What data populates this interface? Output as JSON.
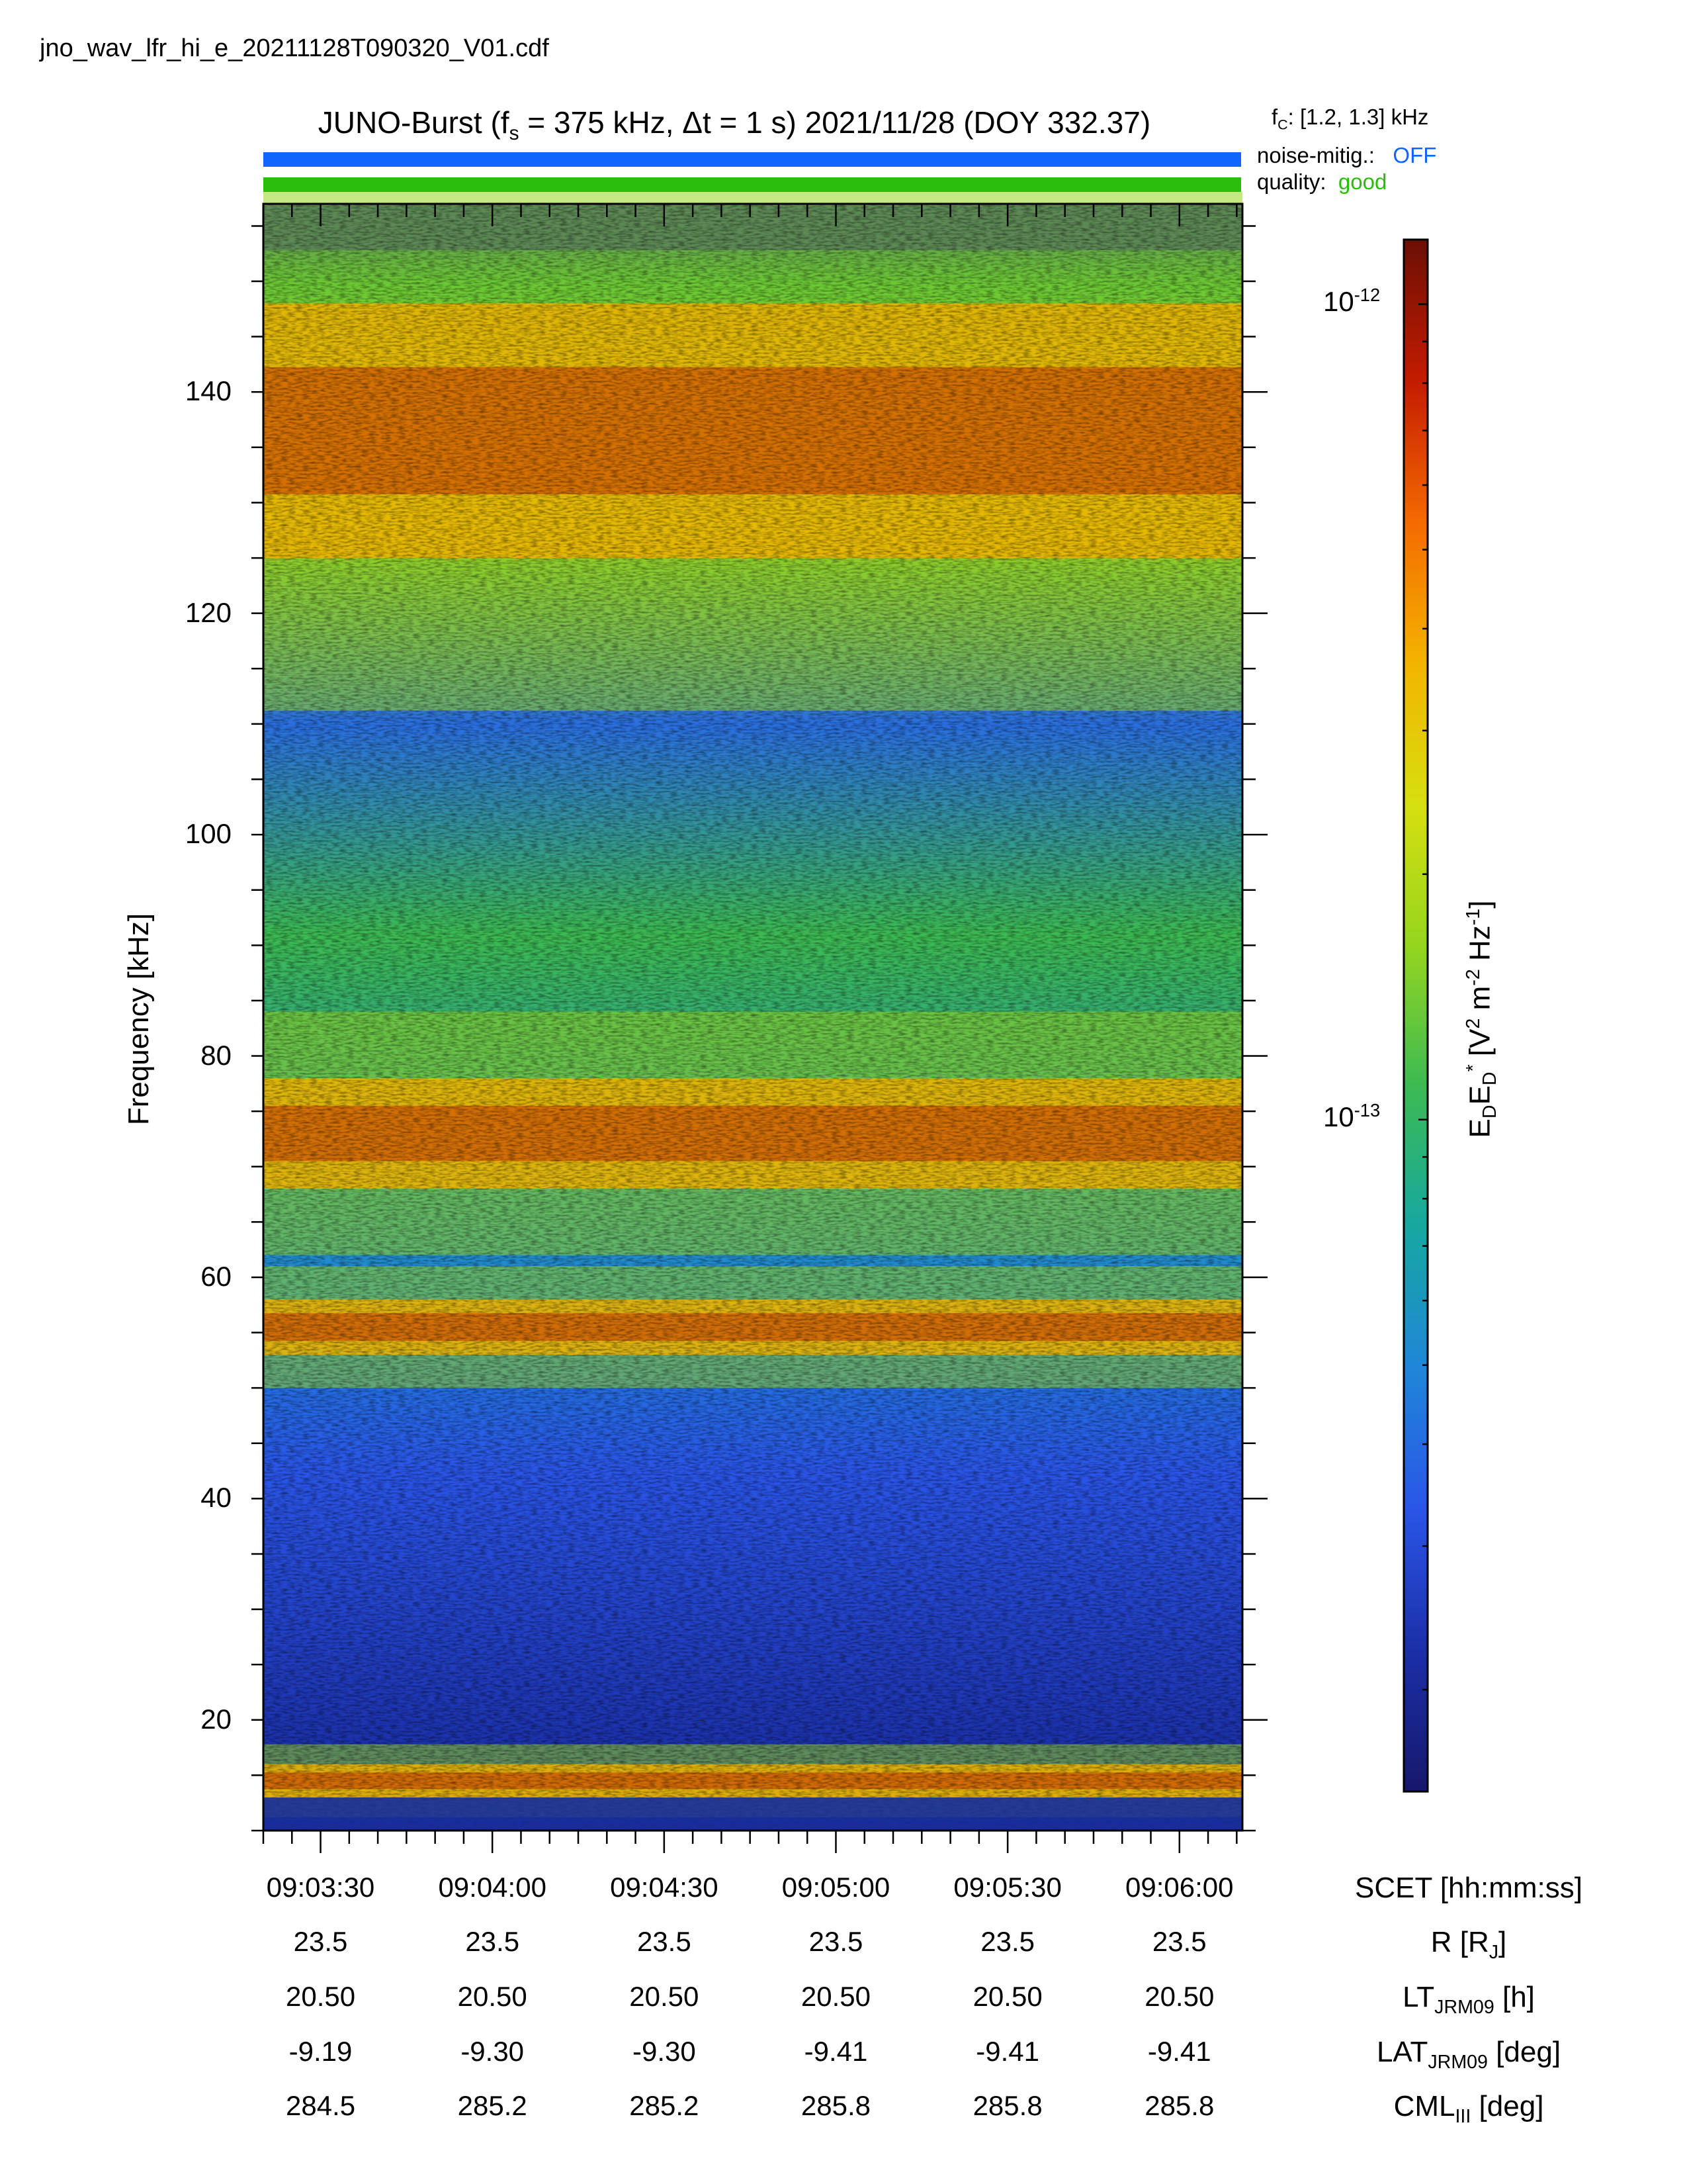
{
  "file_name": "jno_wav_lfr_hi_e_20211128T090320_V01.cdf",
  "title": {
    "text_a": "JUNO-Burst (f",
    "sub_s": "s",
    "text_b": " = 375 kHz, Δt = 1 s)  2021/11/28 (DOY 332.37)"
  },
  "fc_label": {
    "f": "f",
    "sub": "C",
    "rest": ": [1.2, 1.3] kHz"
  },
  "noise_mitig": {
    "label": "noise-mitig.:",
    "value": "OFF",
    "color": "#1165ff"
  },
  "quality": {
    "label": "quality:",
    "value": "good",
    "color": "#2bbd0c"
  },
  "colorbar": {
    "label_html": "E<sub>D</sub>E<sub>D</sub><sup>*</sup> [V<sup>2</sup> m<sup>-2</sup> Hz<sup>-1</sup>]",
    "ticks": [
      {
        "base": "10",
        "exp": "-12"
      },
      {
        "base": "10",
        "exp": "-13"
      }
    ],
    "colormap": [
      "#17186b",
      "#1b2fa8",
      "#2a55e8",
      "#1f86d8",
      "#16a8a0",
      "#3cba52",
      "#95d51e",
      "#d6df0f",
      "#f3b400",
      "#f56a00",
      "#c41b00",
      "#6b0f06"
    ]
  },
  "axes": {
    "ylabel": "Frequency [kHz]",
    "yticks": [
      "140",
      "120",
      "100",
      "80",
      "60",
      "40",
      "20"
    ],
    "xticks": [
      "09:03:30",
      "09:04:00",
      "09:04:30",
      "09:05:00",
      "09:05:30",
      "09:06:00"
    ]
  },
  "ephemeris": {
    "rows": [
      {
        "label_html": "SCET [hh:mm:ss]",
        "values": []
      },
      {
        "label_html": "R [R<sub>J</sub>]",
        "values": [
          "23.5",
          "23.5",
          "23.5",
          "23.5",
          "23.5",
          "23.5"
        ]
      },
      {
        "label_html": "LT<sub>JRM09</sub> [h]",
        "values": [
          "20.50",
          "20.50",
          "20.50",
          "20.50",
          "20.50",
          "20.50"
        ]
      },
      {
        "label_html": "LAT<sub>JRM09</sub> [deg]",
        "values": [
          "-9.19",
          "-9.30",
          "-9.30",
          "-9.41",
          "-9.41",
          "-9.41"
        ]
      },
      {
        "label_html": "CML<sub>III</sub> [deg]",
        "values": [
          "284.5",
          "285.2",
          "285.2",
          "285.8",
          "285.8",
          "285.8"
        ]
      }
    ]
  },
  "chart_data": {
    "type": "heatmap",
    "title": "JUNO-Burst (fs = 375 kHz, Δt = 1 s)  2021/11/28 (DOY 332.37)",
    "xlabel": "SCET [hh:mm:ss]",
    "ylabel": "Frequency [kHz]",
    "x_range": [
      "09:03:20",
      "09:06:11"
    ],
    "ylim": [
      10,
      157
    ],
    "y_ticks": [
      20,
      40,
      60,
      80,
      100,
      120,
      140
    ],
    "colorbar_range": [
      1.5e-14,
      1.2e-12
    ],
    "colorbar_scale": "log",
    "emission_bands_kHz": [
      {
        "freq": [
          13,
          16
        ],
        "level": "high"
      },
      {
        "freq": [
          53,
          58
        ],
        "level": "high"
      },
      {
        "freq": [
          68,
          78
        ],
        "level": "high"
      },
      {
        "freq": [
          125,
          148
        ],
        "level": "high"
      }
    ]
  }
}
